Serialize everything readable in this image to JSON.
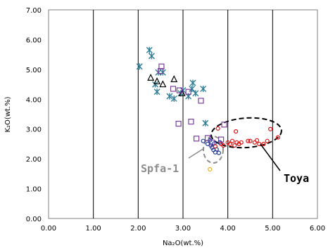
{
  "chart_data": {
    "type": "scatter",
    "title": "",
    "xlabel": "Na₂O(wt.%)",
    "ylabel": "K₂O(wt.%)",
    "xlim": [
      0,
      6
    ],
    "ylim": [
      0,
      7
    ],
    "x_ticks": [
      "0.00",
      "1.00",
      "2.00",
      "3.00",
      "4.00",
      "5.00",
      "6.00"
    ],
    "y_ticks": [
      "0.00",
      "1.00",
      "2.00",
      "3.00",
      "4.00",
      "5.00",
      "6.00",
      "7.00"
    ],
    "grid": "vertical",
    "legend": "none",
    "series": [
      {
        "marker": "asterisk",
        "color": "#2e7d96",
        "points": [
          [
            2.03,
            5.1
          ],
          [
            2.25,
            5.65
          ],
          [
            2.3,
            5.45
          ],
          [
            2.38,
            4.5
          ],
          [
            2.42,
            4.25
          ],
          [
            2.45,
            4.9
          ],
          [
            2.55,
            4.9
          ],
          [
            2.7,
            4.1
          ],
          [
            2.8,
            4.02
          ],
          [
            2.95,
            4.2
          ],
          [
            3.0,
            4.3
          ],
          [
            3.12,
            4.1
          ],
          [
            3.2,
            4.35
          ],
          [
            3.22,
            4.55
          ],
          [
            3.28,
            4.2
          ],
          [
            3.45,
            4.35
          ],
          [
            3.5,
            3.2
          ]
        ]
      },
      {
        "marker": "triangle-open",
        "color": "#000000",
        "points": [
          [
            2.28,
            4.72
          ],
          [
            2.42,
            4.6
          ],
          [
            2.55,
            4.5
          ],
          [
            2.8,
            4.67
          ],
          [
            2.98,
            4.2
          ]
        ]
      },
      {
        "marker": "square-open",
        "color": "#7b3fa0",
        "points": [
          [
            2.5,
            4.95
          ],
          [
            2.52,
            5.1
          ],
          [
            2.78,
            4.35
          ],
          [
            2.9,
            3.18
          ],
          [
            2.92,
            4.3
          ],
          [
            3.12,
            4.25
          ],
          [
            3.18,
            3.25
          ],
          [
            3.3,
            2.68
          ],
          [
            3.4,
            3.95
          ],
          [
            3.55,
            2.7
          ],
          [
            3.65,
            2.55
          ],
          [
            3.85,
            2.65
          ],
          [
            3.92,
            3.15
          ]
        ]
      },
      {
        "marker": "circle-open",
        "color": "#1f3a9a",
        "points": [
          [
            3.45,
            2.6
          ],
          [
            3.55,
            2.5
          ],
          [
            3.6,
            2.62
          ],
          [
            3.62,
            2.45
          ],
          [
            3.65,
            2.38
          ],
          [
            3.7,
            2.52
          ],
          [
            3.72,
            2.22
          ],
          [
            3.75,
            2.32
          ],
          [
            3.8,
            2.2
          ],
          [
            3.82,
            2.55
          ],
          [
            3.68,
            2.3
          ]
        ]
      },
      {
        "marker": "circle-open",
        "color": "#e01010",
        "points": [
          [
            3.72,
            2.42
          ],
          [
            3.78,
            3.02
          ],
          [
            3.85,
            2.5
          ],
          [
            3.9,
            2.45
          ],
          [
            4.0,
            2.55
          ],
          [
            4.05,
            2.5
          ],
          [
            4.1,
            2.6
          ],
          [
            4.15,
            2.45
          ],
          [
            4.2,
            2.55
          ],
          [
            4.18,
            2.92
          ],
          [
            4.25,
            2.5
          ],
          [
            4.3,
            2.55
          ],
          [
            4.45,
            2.6
          ],
          [
            4.5,
            2.6
          ],
          [
            4.6,
            2.55
          ],
          [
            4.65,
            2.62
          ],
          [
            4.7,
            2.5
          ],
          [
            4.8,
            2.5
          ],
          [
            4.88,
            2.6
          ],
          [
            4.95,
            3.0
          ],
          [
            5.12,
            2.72
          ]
        ]
      },
      {
        "marker": "circle-open",
        "color": "#e8b020",
        "points": [
          [
            3.6,
            1.65
          ]
        ]
      }
    ],
    "annotations": [
      {
        "text": "Spfa-1",
        "color": "#8c8c8c"
      },
      {
        "text": "Toya",
        "color": "#000000"
      }
    ]
  }
}
